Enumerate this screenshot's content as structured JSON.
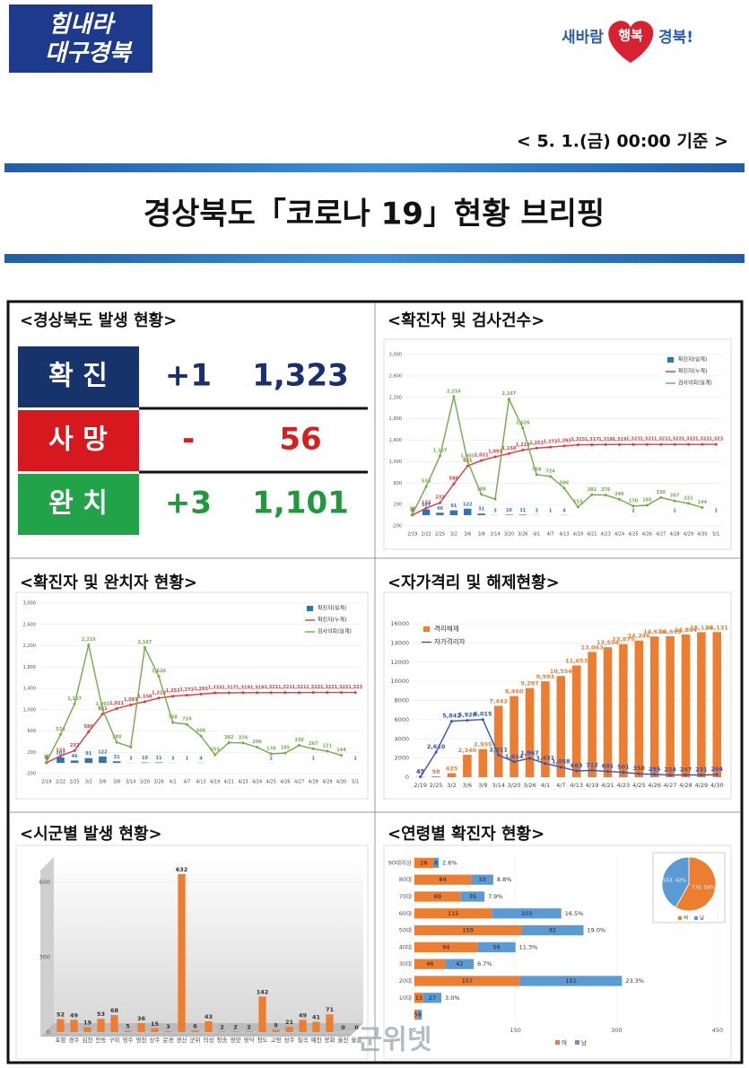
{
  "header": {
    "logo_left": [
      "힘내라",
      "대구경북"
    ],
    "logo_right": [
      "새바람",
      "행복",
      "경북!"
    ],
    "date": "< 5. 1.(금) 00:00 기준 >",
    "title": "경상북도「코로나 19」현황 브리핑"
  },
  "panels": [
    "<경상북도 발생 현황>",
    "<확진자 및 검사건수>",
    "<확진자 및 완치자 현황>",
    "<자가격리 및 해제현황>",
    "<시군별 발생 현황>",
    "<연령별 확진자 현황>"
  ],
  "status": {
    "rows": [
      {
        "label": "확 진",
        "change": "+1",
        "total": "1,323"
      },
      {
        "label": "사 망",
        "change": "-",
        "total": "56"
      },
      {
        "label": "완 치",
        "change": "+3",
        "total": "1,101"
      }
    ]
  },
  "watermark": "군위넷",
  "chart_data": [
    {
      "type": "combo",
      "categories": [
        "2/19",
        "2/22",
        "2/25",
        "3/2",
        "3/6",
        "3/8",
        "3/14",
        "3/20",
        "3/26",
        "4/1",
        "4/7",
        "4/13",
        "4/19",
        "4/21",
        "4/23",
        "4/24",
        "4/25",
        "4/26",
        "4/27",
        "4/28",
        "4/29",
        "4/30",
        "5/1"
      ],
      "ylim": [
        -200,
        3000
      ],
      "yticks": [
        -200,
        200,
        600,
        {
          "value": 1000,
          "label": "1,000"
        },
        {
          "value": 1400,
          "label": "1,400"
        },
        {
          "value": 1800,
          "label": "1,800"
        },
        {
          "value": 2200,
          "label": "2,200"
        },
        {
          "value": 2600,
          "label": "2,600"
        },
        {
          "value": 3000,
          "label": "3,000"
        }
      ],
      "legend": "upper right",
      "series": [
        {
          "name": "확진자(일계)",
          "type": "bar",
          "color": "#2e75b6",
          "values": [
            3,
            107,
            46,
            91,
            122,
            31,
            3,
            10,
            11,
            3,
            1,
            4,
            0,
            0,
            0,
            0,
            2,
            0,
            0,
            1,
            0,
            0,
            1
          ]
        },
        {
          "name": "확진자(누계)",
          "type": "line",
          "color": "#e03a3a",
          "values": [
            3,
            133,
            232,
            586,
            921,
            1021,
            1091,
            1150,
            1218,
            1253,
            1272,
            1293,
            1315,
            1317,
            1319,
            1319,
            1321,
            1321,
            1321,
            1322,
            1322,
            1322,
            1323
          ],
          "value_labels": [
            "3",
            "133",
            "232",
            "586",
            "921",
            "1,021",
            "1,091",
            "1,150",
            "1,218",
            "1,253",
            "1,272",
            "1,293",
            "1,315",
            "1,317",
            "1,319",
            "1,319",
            "1,321",
            "1,321",
            "1,321",
            "1,322",
            "1,322",
            "1,322",
            "1,323"
          ]
        },
        {
          "name": "검사의뢰(일계)",
          "type": "line",
          "color": "#70ad47",
          "values": [
            17,
            534,
            1107,
            2216,
            1003,
            388,
            300,
            2167,
            1626,
            758,
            724,
            506,
            153,
            382,
            376,
            296,
            170,
            185,
            330,
            267,
            221,
            144,
            null
          ],
          "value_labels": [
            "17",
            "534",
            "1,107",
            "2,216",
            "1,003",
            "388",
            null,
            "2,167",
            "1,626",
            "758",
            "724",
            "506",
            "153",
            "382",
            "376",
            "296",
            "170",
            "185",
            "330",
            "267",
            "221",
            "144",
            null
          ]
        }
      ]
    },
    {
      "type": "combo",
      "categories": [
        "2/19",
        "2/25",
        "3/2",
        "3/6",
        "3/9",
        "3/14",
        "3/20",
        "3/26",
        "4/1",
        "4/7",
        "4/13",
        "4/19",
        "4/21",
        "4/23",
        "4/25",
        "4/26",
        "4/27",
        "4/28",
        "4/29",
        "4/30"
      ],
      "ylim": [
        0,
        16000
      ],
      "yticks": [
        0,
        2000,
        4000,
        6000,
        8000,
        10000,
        12000,
        14000,
        16000
      ],
      "legend": "upper left",
      "series": [
        {
          "name": "격리해제",
          "type": "bar",
          "color": "#ed7d31",
          "values": [
            42,
            98,
            425,
            2340,
            2935,
            7442,
            8460,
            9297,
            9993,
            10554,
            11653,
            13063,
            13554,
            13875,
            14246,
            14676,
            14699,
            14884,
            15124,
            15131
          ],
          "value_labels": [
            "42",
            "98",
            "425",
            "2,340",
            "2,935",
            "7,442",
            "8,460",
            "9,297",
            "9,993",
            "10,554",
            "11,653",
            "13,063",
            "13,554",
            "13,875",
            "14,246",
            "14,676",
            "14,699",
            "14,884",
            "15,124",
            "15,131"
          ]
        },
        {
          "name": "자가격리자",
          "type": "line",
          "color": "#2f55c0",
          "values": [
            45,
            2610,
            5842,
            5928,
            6015,
            2311,
            1614,
            1967,
            1431,
            1058,
            663,
            712,
            601,
            501,
            358,
            295,
            224,
            247,
            231,
            264
          ],
          "value_labels": [
            "45",
            "2,610",
            "5,842",
            "5,928",
            "6,015",
            "2,311",
            "1,614",
            "1,967",
            "1,431",
            "1,058",
            "663",
            "712",
            "601",
            "501",
            "358",
            "295",
            "224",
            "247",
            "231",
            "264"
          ]
        }
      ]
    },
    {
      "type": "bar",
      "categories": [
        "포항",
        "경주",
        "김천",
        "안동",
        "구미",
        "영주",
        "영천",
        "상주",
        "문경",
        "경산",
        "군위",
        "의성",
        "청송",
        "영양",
        "영덕",
        "청도",
        "고령",
        "성주",
        "칠곡",
        "예천",
        "봉화",
        "울진",
        "울릉"
      ],
      "values": [
        52,
        49,
        19,
        53,
        68,
        5,
        36,
        15,
        3,
        632,
        6,
        43,
        2,
        2,
        2,
        142,
        9,
        21,
        49,
        41,
        71,
        0,
        0
      ],
      "color": "#ed7d31",
      "ylim": [
        0,
        700
      ],
      "yticks": [
        0,
        300,
        600
      ]
    },
    {
      "type": "hbar",
      "categories": [
        "90대이상",
        "80대",
        "70대",
        "60대",
        "50대",
        "40대",
        "30대",
        "20대",
        "10대",
        null
      ],
      "series": [
        {
          "name": "여",
          "color": "#ed7d31",
          "values": [
            28,
            84,
            69,
            115,
            159,
            94,
            46,
            157,
            13,
            5
          ]
        },
        {
          "name": "남",
          "color": "#5b9bd5",
          "values": [
            8,
            33,
            35,
            103,
            92,
            56,
            42,
            151,
            27,
            6
          ]
        }
      ],
      "percent_labels": [
        "2.6%",
        "8.8%",
        "7.9%",
        "16.5%",
        "19.0%",
        "11.3%",
        "6.7%",
        "23.3%",
        "3.0%",
        null
      ],
      "xlim": [
        0,
        450
      ],
      "xticks": [
        0,
        150,
        300,
        450
      ],
      "legend": "bottom"
    },
    {
      "type": "pie",
      "categories": [
        "여",
        "남"
      ],
      "values": [
        770,
        553
      ],
      "value_labels": [
        "770, 58%",
        "553, 42%"
      ],
      "colors": [
        "#ed7d31",
        "#5b9bd5"
      ],
      "legend": "bottom"
    }
  ]
}
